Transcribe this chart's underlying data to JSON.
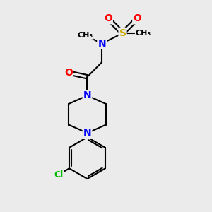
{
  "bg_color": "#ebebeb",
  "atom_colors": {
    "N": "#0000ff",
    "O": "#ff0000",
    "S": "#ccaa00",
    "Cl": "#00bb00",
    "C": "#000000"
  },
  "structure": {
    "sx": 5.8,
    "sy": 8.5,
    "o1x": 5.1,
    "o1y": 9.2,
    "o2x": 6.5,
    "o2y": 9.2,
    "ch3sx": 6.8,
    "ch3sy": 8.5,
    "nnx": 4.8,
    "nny": 8.0,
    "ch3nx": 4.0,
    "ch3ny": 8.4,
    "ch2x": 4.8,
    "ch2y": 7.1,
    "cox": 4.1,
    "coy": 6.4,
    "oox": 3.2,
    "ooy": 6.6,
    "n1x": 4.1,
    "n1y": 5.5,
    "p1x": 5.0,
    "p1y": 5.1,
    "p2x": 5.0,
    "p2y": 4.1,
    "n2x": 4.1,
    "n2y": 3.7,
    "p3x": 3.2,
    "p3y": 4.1,
    "p4x": 3.2,
    "p4y": 5.1,
    "phcx": 4.1,
    "phcy": 2.5,
    "r_ph": 1.0
  }
}
